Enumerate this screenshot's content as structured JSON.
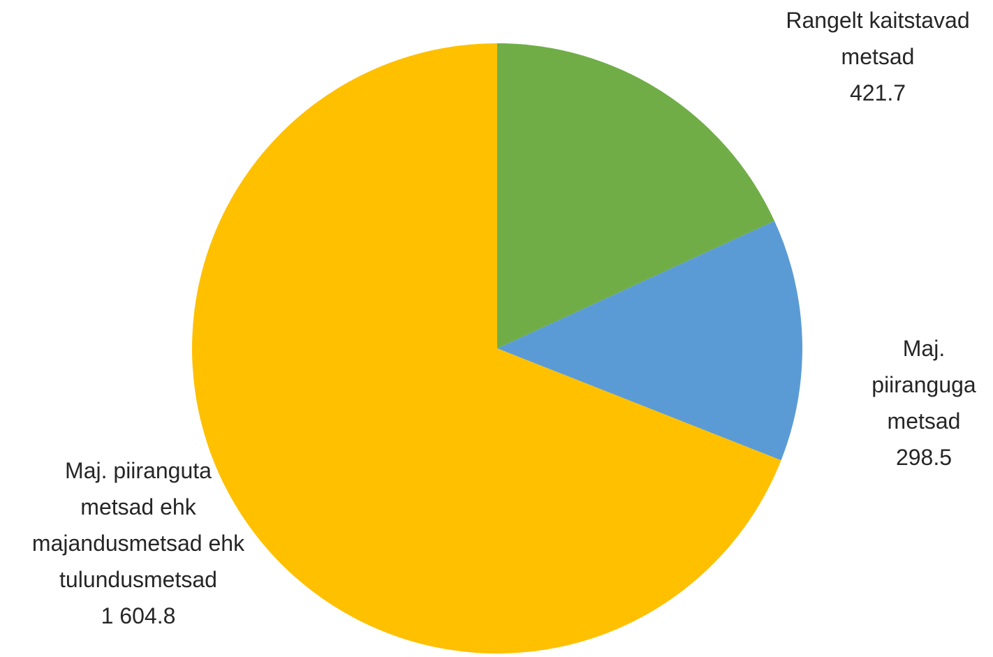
{
  "chart_data": {
    "type": "pie",
    "title": "",
    "start_angle_deg": 0,
    "direction": "clockwise",
    "slices": [
      {
        "label_lines": [
          "Rangelt kaitstavad",
          "metsad"
        ],
        "value": 421.7,
        "value_text": "421.7",
        "color": "#70AD47"
      },
      {
        "label_lines": [
          "Maj.",
          "piiranguga",
          "metsad"
        ],
        "value": 298.5,
        "value_text": "298.5",
        "color": "#5B9BD5"
      },
      {
        "label_lines": [
          "Maj. piiranguta",
          "metsad ehk",
          "majandusmetsad ehk",
          "tulundusmetsad"
        ],
        "value": 1604.8,
        "value_text": "1 604.8",
        "color": "#FFC000"
      }
    ]
  }
}
